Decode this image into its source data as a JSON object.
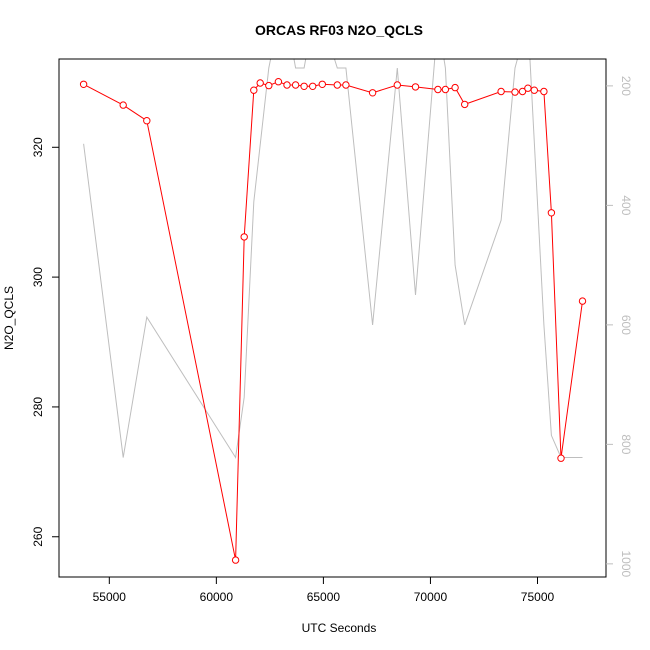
{
  "chart_data": {
    "type": "line",
    "title": "ORCAS RF03 N2O_QCLS",
    "xlabel": "UTC Seconds",
    "ylabel": "N2O_QCLS",
    "xlim": [
      52650,
      78200
    ],
    "ylim": [
      253.8,
      333.6
    ],
    "y2lim": [
      1022,
      155
    ],
    "y2_reversed": true,
    "x_ticks": [
      55000,
      60000,
      65000,
      70000,
      75000
    ],
    "x_tick_labels": [
      "55000",
      "60000",
      "65000",
      "70000",
      "75000"
    ],
    "y_ticks": [
      260,
      280,
      300,
      320
    ],
    "y_tick_labels": [
      "260",
      "280",
      "300",
      "320"
    ],
    "y2_ticks": [
      200,
      400,
      600,
      800,
      1000
    ],
    "y2_tick_labels": [
      "200",
      "400",
      "600",
      "800",
      "1000"
    ],
    "grid": false,
    "series": [
      {
        "axis": "left",
        "color": "#ff0000",
        "marker": "open-circle",
        "x": [
          53800,
          55650,
          56750,
          60900,
          61300,
          61750,
          62050,
          62450,
          62900,
          63300,
          63700,
          64100,
          64500,
          64950,
          65650,
          66050,
          67300,
          68450,
          69300,
          70350,
          70700,
          71150,
          71600,
          73300,
          73950,
          74300,
          74550,
          74850,
          75300,
          75650,
          76100,
          77100
        ],
        "y": [
          329.7,
          326.5,
          324.1,
          256.4,
          306.2,
          328.8,
          329.9,
          329.5,
          330.1,
          329.6,
          329.6,
          329.4,
          329.4,
          329.7,
          329.6,
          329.6,
          328.4,
          329.6,
          329.3,
          328.9,
          328.9,
          329.2,
          326.6,
          328.6,
          328.5,
          328.6,
          329.1,
          328.8,
          328.6,
          309.9,
          272.1,
          296.3
        ]
      },
      {
        "axis": "right",
        "color": "#bebebe",
        "x": [
          53800,
          55650,
          56750,
          60900,
          61300,
          61750,
          62450,
          62900,
          63300,
          63700,
          64100,
          64500,
          64950,
          65650,
          66050,
          67300,
          68450,
          69300,
          70350,
          70700,
          71150,
          71600,
          73300,
          73950,
          74550,
          75300,
          75650,
          76100,
          77100
        ],
        "y": [
          297,
          822,
          587,
          822,
          721,
          394,
          170,
          90,
          90,
          170,
          170,
          90,
          90,
          170,
          170,
          600,
          170,
          550,
          90,
          170,
          500,
          600,
          425,
          170,
          90,
          600,
          785,
          822,
          822
        ]
      }
    ]
  }
}
